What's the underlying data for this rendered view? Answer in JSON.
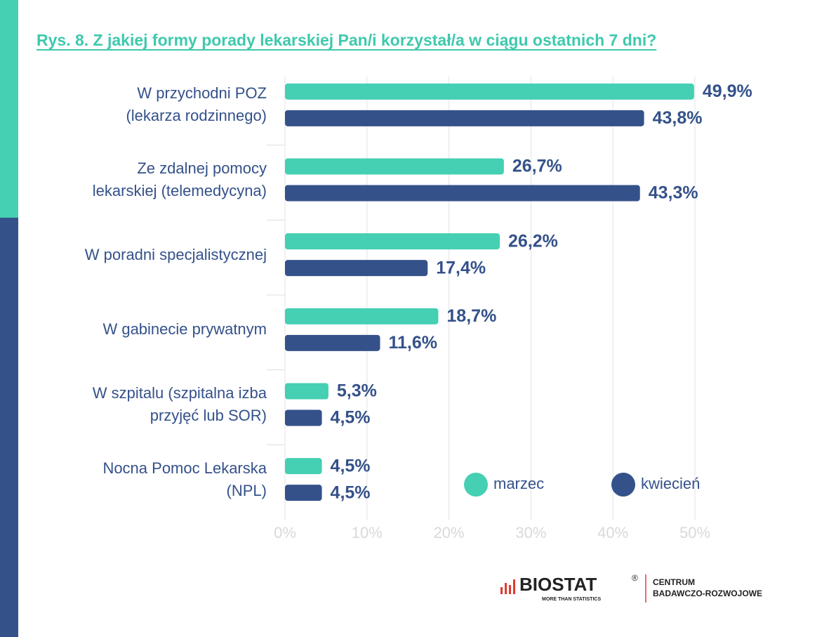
{
  "chart_data": {
    "type": "bar",
    "orientation": "horizontal",
    "title": "Rys. 8. Z jakiej formy porady lekarskiej Pan/i korzystał/a w ciągu ostatnich 7 dni?",
    "categories": [
      "W przychodni POZ \n(lekarza rodzinnego)",
      "Ze zdalnej pomocy\nlekarskiej (telemedycyna)",
      "W poradni specjalistycznej",
      "W gabinecie prywatnym",
      "W szpitalu (szpitalna izba\nprzyjęć lub SOR)",
      "Nocna Pomoc Lekarska\n(NPL)"
    ],
    "series": [
      {
        "name": "marzec",
        "color": "#45cfb3",
        "values": [
          49.9,
          26.7,
          26.2,
          18.7,
          5.3,
          4.5
        ],
        "value_labels": [
          "49,9%",
          "26,7%",
          "26,2%",
          "18,7%",
          "5,3%",
          "4,5%"
        ]
      },
      {
        "name": "kwiecień",
        "color": "#34518a",
        "values": [
          43.8,
          43.3,
          17.4,
          11.6,
          4.5,
          4.5
        ],
        "value_labels": [
          "43,8%",
          "43,3%",
          "17,4%",
          "11,6%",
          "4,5%",
          "4,5%"
        ]
      }
    ],
    "xlim": [
      0,
      50
    ],
    "xticks": [
      {
        "value": 0,
        "label": "0%"
      },
      {
        "value": 10,
        "label": "10%"
      },
      {
        "value": 20,
        "label": "20%"
      },
      {
        "value": 30,
        "label": "30%"
      },
      {
        "value": 40,
        "label": "40%"
      },
      {
        "value": 50,
        "label": "50%"
      }
    ],
    "grid": true,
    "legend": "lower right"
  },
  "logo": {
    "brand": "BIOSTAT",
    "mark": "®",
    "tagline": "MORE THAN STATISTICS",
    "line1": "CENTRUM",
    "line2": "BADAWCZO-ROZWOJOWE"
  }
}
